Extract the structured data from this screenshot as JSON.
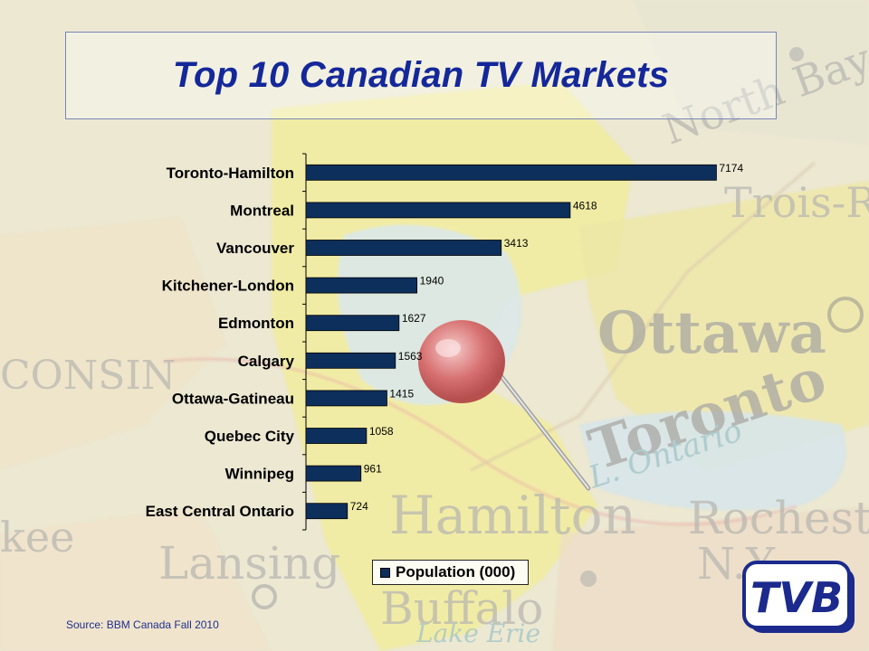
{
  "title": "Top 10 Canadian TV Markets",
  "source": "Source: BBM Canada Fall 2010",
  "logo_text": "TVB",
  "colors": {
    "bar": "#0d2f5c",
    "title": "#14289a",
    "source": "#1f2f90"
  },
  "background_map_labels": [
    "North Bay",
    "Trois-R",
    "Ottawa",
    "Toronto",
    "Hamilton",
    "Rochester",
    "N.Y.",
    "Lansing",
    "Buffalo",
    "L. Ontario",
    "Lake Erie",
    "CONSIN",
    "kee"
  ],
  "chart_data": {
    "type": "bar",
    "orientation": "horizontal",
    "categories": [
      "Toronto-Hamilton",
      "Montreal",
      "Vancouver",
      "Kitchener-London",
      "Edmonton",
      "Calgary",
      "Ottawa-Gatineau",
      "Quebec City",
      "Winnipeg",
      "East Central Ontario"
    ],
    "series": [
      {
        "name": "Population (000)",
        "values": [
          7174,
          4618,
          3413,
          1940,
          1627,
          1563,
          1415,
          1058,
          961,
          724
        ]
      }
    ],
    "xlim": [
      0,
      7800
    ],
    "grid": false,
    "legend": "bottom",
    "data_labels": true
  }
}
